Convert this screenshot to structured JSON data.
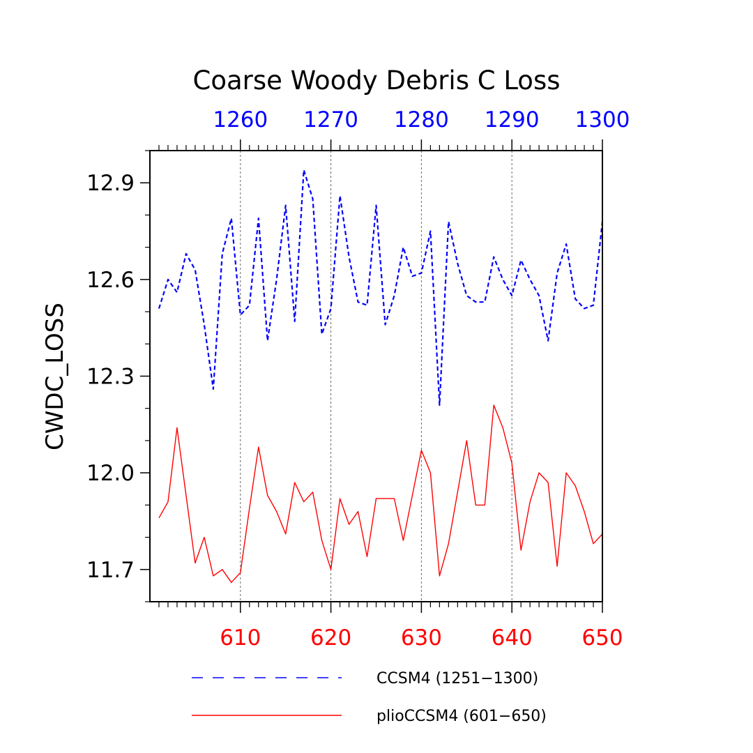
{
  "chart_data": {
    "type": "line",
    "title": "Coarse Woody Debris C Loss",
    "ylabel": "CWDC_LOSS",
    "ylim": [
      11.6,
      13.0
    ],
    "y_ticks": [
      11.7,
      12.0,
      12.3,
      12.6,
      12.9
    ],
    "y_tick_labels": [
      "11.7",
      "12.0",
      "12.3",
      "12.6",
      "12.9"
    ],
    "x_bottom": {
      "range": [
        601,
        650
      ],
      "ticks": [
        610,
        620,
        630,
        640,
        650
      ],
      "tick_labels": [
        "610",
        "620",
        "630",
        "640",
        "650"
      ],
      "color": "#ff0000"
    },
    "x_top": {
      "range": [
        1251,
        1300
      ],
      "ticks": [
        1260,
        1270,
        1280,
        1290,
        1300
      ],
      "tick_labels": [
        "1260",
        "1270",
        "1280",
        "1290",
        "1300"
      ],
      "color": "#0000ff"
    },
    "grid": "vertical dashed at major x ticks",
    "series": [
      {
        "name": "CCSM4 (1251-1300)",
        "axis": "top",
        "color": "#0000ff",
        "style": "dashed",
        "x": [
          1251,
          1252,
          1253,
          1254,
          1255,
          1256,
          1257,
          1258,
          1259,
          1260,
          1261,
          1262,
          1263,
          1264,
          1265,
          1266,
          1267,
          1268,
          1269,
          1270,
          1271,
          1272,
          1273,
          1274,
          1275,
          1276,
          1277,
          1278,
          1279,
          1280,
          1281,
          1282,
          1283,
          1284,
          1285,
          1286,
          1287,
          1288,
          1289,
          1290,
          1291,
          1292,
          1293,
          1294,
          1295,
          1296,
          1297,
          1298,
          1299,
          1300
        ],
        "values": [
          12.51,
          12.6,
          12.56,
          12.68,
          12.63,
          12.46,
          12.26,
          12.68,
          12.79,
          12.49,
          12.52,
          12.79,
          12.41,
          12.6,
          12.83,
          12.47,
          12.94,
          12.85,
          12.43,
          12.51,
          12.86,
          12.67,
          12.53,
          12.52,
          12.83,
          12.46,
          12.55,
          12.7,
          12.61,
          12.62,
          12.75,
          12.21,
          12.78,
          12.65,
          12.55,
          12.53,
          12.53,
          12.67,
          12.6,
          12.55,
          12.66,
          12.6,
          12.55,
          12.41,
          12.62,
          12.71,
          12.54,
          12.51,
          12.52,
          12.78
        ]
      },
      {
        "name": "plioCCSM4 (601-650)",
        "axis": "bottom",
        "color": "#ff0000",
        "style": "solid",
        "x": [
          601,
          602,
          603,
          604,
          605,
          606,
          607,
          608,
          609,
          610,
          611,
          612,
          613,
          614,
          615,
          616,
          617,
          618,
          619,
          620,
          621,
          622,
          623,
          624,
          625,
          626,
          627,
          628,
          629,
          630,
          631,
          632,
          633,
          634,
          635,
          636,
          637,
          638,
          639,
          640,
          641,
          642,
          643,
          644,
          645,
          646,
          647,
          648,
          649,
          650
        ],
        "values": [
          11.86,
          11.91,
          12.14,
          11.93,
          11.72,
          11.8,
          11.68,
          11.7,
          11.66,
          11.69,
          11.89,
          12.08,
          11.93,
          11.88,
          11.81,
          11.97,
          11.91,
          11.94,
          11.79,
          11.7,
          11.92,
          11.84,
          11.88,
          11.74,
          11.92,
          11.92,
          11.92,
          11.79,
          11.93,
          12.07,
          12.0,
          11.68,
          11.78,
          11.94,
          12.1,
          11.9,
          11.9,
          12.21,
          12.14,
          12.03,
          11.76,
          11.91,
          12.0,
          11.97,
          11.71,
          12.0,
          11.96,
          11.88,
          11.78,
          11.81
        ]
      }
    ],
    "legend": {
      "position": "bottom",
      "items": [
        {
          "label": "CCSM4 (1251−1300)",
          "color": "#0000ff",
          "style": "dashed"
        },
        {
          "label": "plioCCSM4 (601−650)",
          "color": "#ff0000",
          "style": "solid"
        }
      ]
    }
  }
}
